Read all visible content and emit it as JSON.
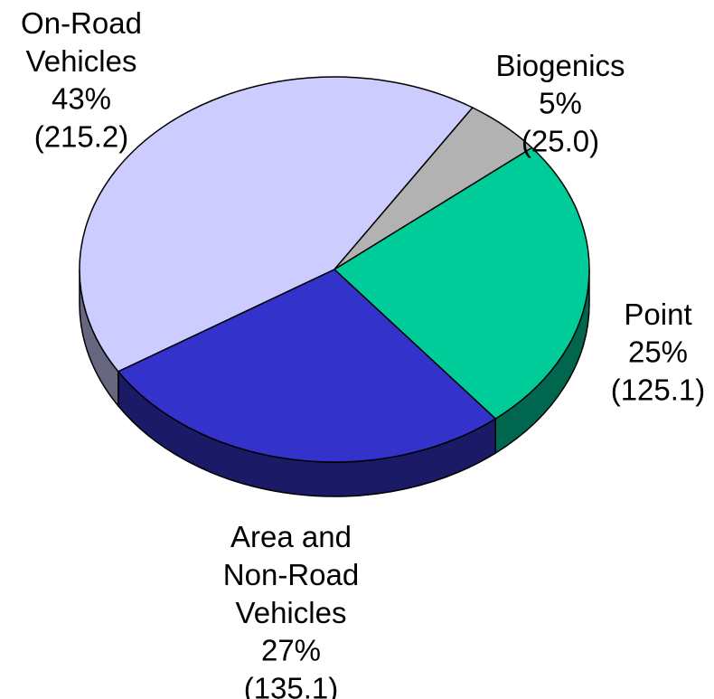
{
  "chart_data": {
    "type": "pie",
    "categories": [
      "On-Road\nVehicles",
      "Biogenics",
      "Point",
      "Area and\nNon-Road\nVehicles"
    ],
    "values": [
      43,
      5,
      25,
      27
    ],
    "value_labels": [
      "43%",
      "5%",
      "25%",
      "27%"
    ],
    "amounts": [
      215.2,
      25.0,
      125.1,
      135.1
    ],
    "amount_labels": [
      "(215.2)",
      "(25.0)",
      "(125.1)",
      "(135.1)"
    ],
    "colors": [
      "#ccccff",
      "#b2b2b2",
      "#00cc99",
      "#3333cc"
    ]
  }
}
